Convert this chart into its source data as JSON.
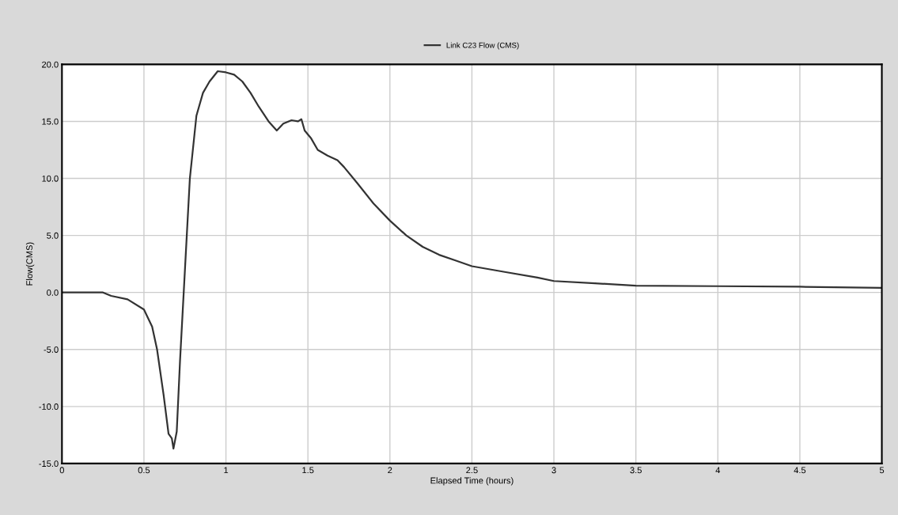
{
  "chart_data": {
    "type": "line",
    "xlabel": "Elapsed Time (hours)",
    "ylabel": "Flow(CMS)",
    "x": [
      0,
      0.25,
      0.3,
      0.4,
      0.5,
      0.55,
      0.58,
      0.62,
      0.65,
      0.67,
      0.68,
      0.7,
      0.72,
      0.75,
      0.78,
      0.82,
      0.86,
      0.9,
      0.95,
      1.0,
      1.05,
      1.1,
      1.15,
      1.2,
      1.26,
      1.31,
      1.35,
      1.4,
      1.44,
      1.46,
      1.48,
      1.52,
      1.56,
      1.62,
      1.68,
      1.72,
      1.8,
      1.9,
      2.0,
      2.1,
      2.2,
      2.3,
      2.4,
      2.5,
      2.7,
      2.9,
      3.0,
      3.25,
      3.5,
      4.0,
      4.5,
      5.0
    ],
    "series": [
      {
        "name": "Link C23 Flow (CMS)",
        "color": "#333333",
        "values": [
          0,
          0,
          -0.3,
          -0.6,
          -1.5,
          -3,
          -5,
          -9,
          -12.4,
          -12.8,
          -13.7,
          -12.2,
          -6,
          2,
          10,
          15.5,
          17.5,
          18.5,
          19.4,
          19.3,
          19.1,
          18.5,
          17.5,
          16.3,
          15.0,
          14.2,
          14.8,
          15.1,
          15.0,
          15.2,
          14.2,
          13.5,
          12.5,
          12.0,
          11.6,
          11.0,
          9.6,
          7.8,
          6.3,
          5.0,
          4.0,
          3.3,
          2.8,
          2.3,
          1.8,
          1.3,
          1.0,
          0.8,
          0.6,
          0.55,
          0.5,
          0.4
        ]
      }
    ],
    "xlim": [
      0,
      5
    ],
    "xticks": [
      0,
      0.5,
      1,
      1.5,
      2,
      2.5,
      3,
      3.5,
      4,
      4.5,
      5
    ],
    "ylim": [
      -15,
      20
    ],
    "yticks": [
      {
        "value": -15,
        "label": "-15.0"
      },
      {
        "value": -10,
        "label": "-10.0"
      },
      {
        "value": -5,
        "label": "-5.0"
      },
      {
        "value": 0,
        "label": "0.0"
      },
      {
        "value": 5,
        "label": "5.0"
      },
      {
        "value": 10,
        "label": "10.0"
      },
      {
        "value": 15,
        "label": "15.0"
      },
      {
        "value": 20,
        "label": "20.0"
      }
    ],
    "grid": true,
    "legend": "top"
  }
}
